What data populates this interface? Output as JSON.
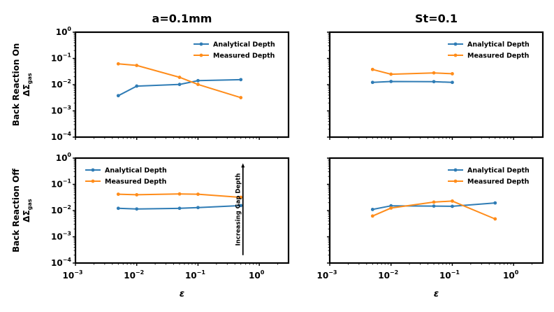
{
  "chart_data": [
    {
      "type": "line",
      "panel": "top-left",
      "title": "a=0.1mm",
      "ylabel_line1": "Back Reaction On",
      "ylabel_line2": "ΔΣ",
      "ylabel_sub": "gas",
      "xlabel": "",
      "xscale": "log",
      "yscale": "log",
      "xlim": [
        0.001,
        3.0
      ],
      "ylim": [
        0.0001,
        1.0
      ],
      "legend": "upper right",
      "show_yticklabels": true,
      "show_xticklabels": false,
      "series": [
        {
          "name": "Analytical Depth",
          "color": "#2f7cb5",
          "x": [
            0.005,
            0.01,
            0.05,
            0.1,
            0.5
          ],
          "y": [
            0.0038,
            0.0088,
            0.0102,
            0.0142,
            0.0155
          ]
        },
        {
          "name": "Measured Depth",
          "color": "#ff8c1a",
          "x": [
            0.005,
            0.01,
            0.05,
            0.1,
            0.5
          ],
          "y": [
            0.062,
            0.054,
            0.019,
            0.0102,
            0.0032
          ]
        }
      ]
    },
    {
      "type": "line",
      "panel": "top-right",
      "title": "St=0.1",
      "xlabel": "",
      "xscale": "log",
      "yscale": "log",
      "xlim": [
        0.001,
        3.0
      ],
      "ylim": [
        0.0001,
        1.0
      ],
      "legend": "upper right",
      "show_yticklabels": false,
      "show_xticklabels": false,
      "series": [
        {
          "name": "Analytical Depth",
          "color": "#2f7cb5",
          "x": [
            0.005,
            0.01,
            0.05,
            0.1
          ],
          "y": [
            0.0122,
            0.0132,
            0.013,
            0.0122
          ]
        },
        {
          "name": "Measured Depth",
          "color": "#ff8c1a",
          "x": [
            0.005,
            0.01,
            0.05,
            0.1
          ],
          "y": [
            0.038,
            0.025,
            0.028,
            0.026
          ]
        }
      ]
    },
    {
      "type": "line",
      "panel": "bottom-left",
      "title": "",
      "ylabel_line1": "Back Reaction Off",
      "ylabel_line2": "ΔΣ",
      "ylabel_sub": "gas",
      "xlabel": "ε",
      "xscale": "log",
      "yscale": "log",
      "xlim": [
        0.001,
        3.0
      ],
      "ylim": [
        0.0001,
        1.0
      ],
      "legend": "upper left",
      "annotation": "Increasing Gap Depth",
      "show_yticklabels": true,
      "show_xticklabels": true,
      "series": [
        {
          "name": "Analytical Depth",
          "color": "#2f7cb5",
          "x": [
            0.005,
            0.01,
            0.05,
            0.1,
            0.5
          ],
          "y": [
            0.0122,
            0.0115,
            0.0122,
            0.013,
            0.0155
          ]
        },
        {
          "name": "Measured Depth",
          "color": "#ff8c1a",
          "x": [
            0.005,
            0.01,
            0.05,
            0.1,
            0.5
          ],
          "y": [
            0.042,
            0.04,
            0.043,
            0.042,
            0.032
          ]
        }
      ]
    },
    {
      "type": "line",
      "panel": "bottom-right",
      "title": "",
      "xlabel": "ε",
      "xscale": "log",
      "yscale": "log",
      "xlim": [
        0.001,
        3.0
      ],
      "ylim": [
        0.0001,
        1.0
      ],
      "legend": "upper right",
      "show_yticklabels": false,
      "show_xticklabels": true,
      "series": [
        {
          "name": "Analytical Depth",
          "color": "#2f7cb5",
          "x": [
            0.005,
            0.01,
            0.05,
            0.1,
            0.5
          ],
          "y": [
            0.011,
            0.0152,
            0.0148,
            0.0145,
            0.0195
          ]
        },
        {
          "name": "Measured Depth",
          "color": "#ff8c1a",
          "x": [
            0.005,
            0.01,
            0.05,
            0.1,
            0.5
          ],
          "y": [
            0.0062,
            0.0125,
            0.021,
            0.023,
            0.0048
          ]
        }
      ]
    }
  ]
}
